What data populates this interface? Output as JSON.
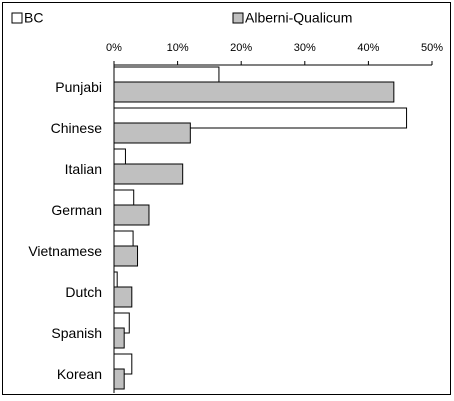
{
  "chart_data": {
    "type": "bar",
    "orientation": "horizontal",
    "categories": [
      "Punjabi",
      "Chinese",
      "Italian",
      "German",
      "Vietnamese",
      "Dutch",
      "Spanish",
      "Korean"
    ],
    "series": [
      {
        "name": "BC",
        "color": "#ffffff",
        "values": [
          16.5,
          46.0,
          1.8,
          3.1,
          3.0,
          0.5,
          2.4,
          2.8
        ]
      },
      {
        "name": "Alberni-Qualicum",
        "color": "#c0c0c0",
        "values": [
          44.0,
          12.0,
          10.8,
          5.5,
          3.7,
          2.8,
          1.6,
          1.6
        ]
      }
    ],
    "x_ticks": [
      "0%",
      "10%",
      "20%",
      "30%",
      "40%",
      "50%"
    ],
    "xlim": [
      0,
      50
    ],
    "axis_position": "top",
    "legend_position": "top",
    "grid": false
  }
}
